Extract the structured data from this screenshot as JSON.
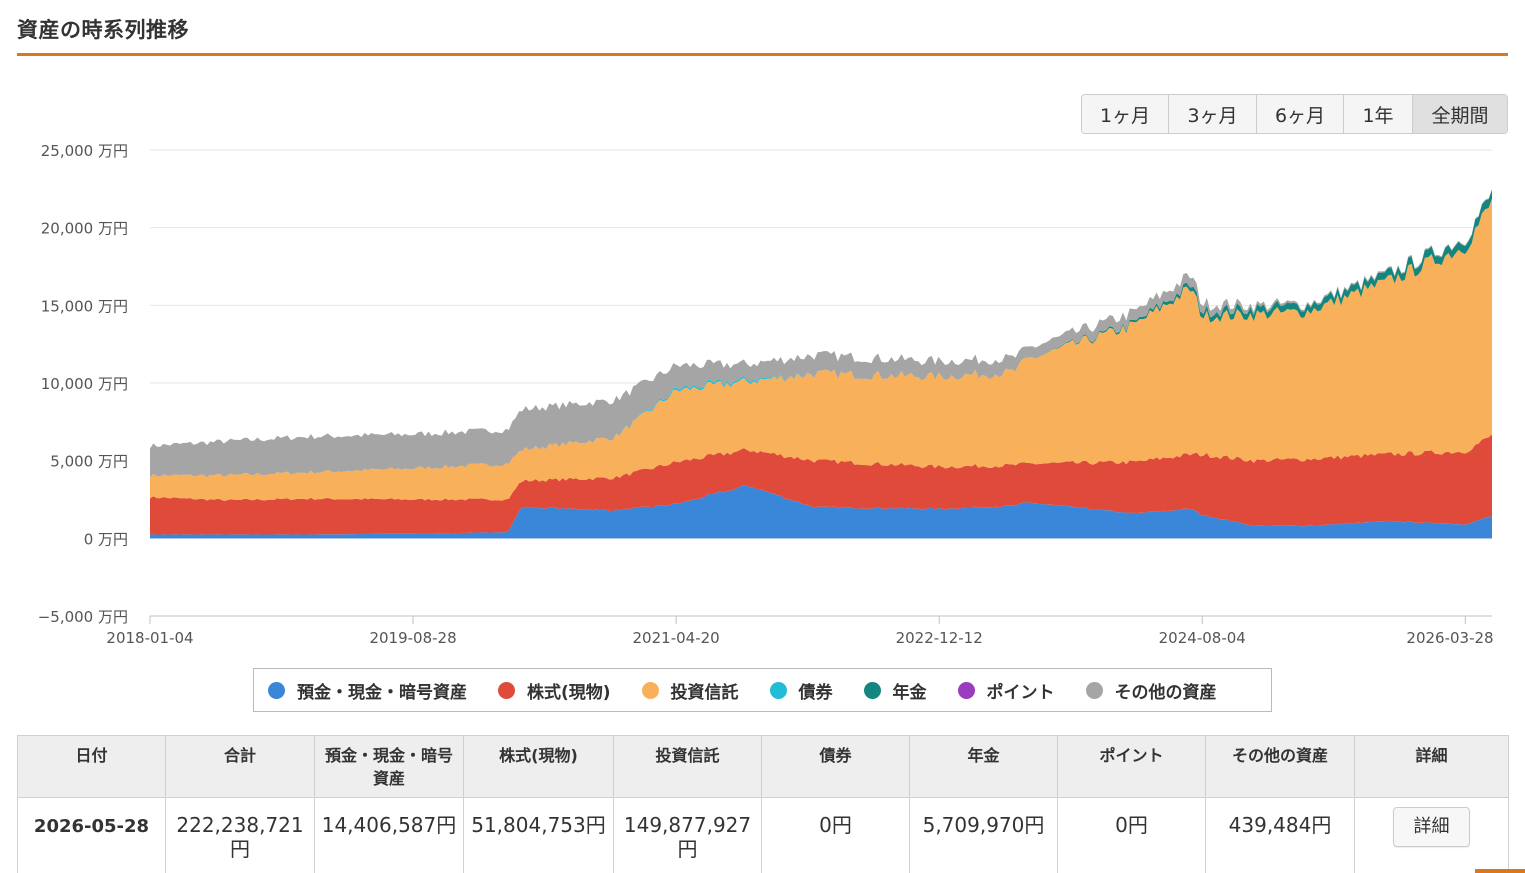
{
  "page": {
    "title": "資産の時系列推移"
  },
  "range_buttons": [
    {
      "label": "1ヶ月",
      "active": false
    },
    {
      "label": "3ヶ月",
      "active": false
    },
    {
      "label": "6ヶ月",
      "active": false
    },
    {
      "label": "1年",
      "active": false
    },
    {
      "label": "全期間",
      "active": true
    }
  ],
  "colors": {
    "accent": "#d9781d",
    "grid": "#e6e6e6",
    "axis": "#c0c0c0"
  },
  "chart_data": {
    "type": "area",
    "stacked": true,
    "y_unit": "万円",
    "ylim": [
      -5000,
      25000
    ],
    "y_ticks": [
      25000,
      20000,
      15000,
      10000,
      5000,
      0,
      -5000
    ],
    "y_tick_labels": [
      "25,000 万円",
      "20,000 万円",
      "15,000 万円",
      "10,000 万円",
      "5,000 万円",
      "0 万円",
      "−5,000 万円"
    ],
    "x_range": [
      "2018-01-04",
      "2026-05-28"
    ],
    "x_tick_labels": [
      "2018-01-04",
      "2019-08-28",
      "2021-04-20",
      "2022-12-12",
      "2024-08-04",
      "2026-03-28"
    ],
    "legend_position": "bottom",
    "grid": true,
    "x": [
      "2018-01-04",
      "2018-07-01",
      "2019-01-01",
      "2019-08-28",
      "2020-04-01",
      "2020-05-01",
      "2020-12-01",
      "2021-04-20",
      "2021-10-01",
      "2022-03-01",
      "2022-12-12",
      "2023-06-01",
      "2023-07-01",
      "2024-03-01",
      "2024-07-10",
      "2024-08-04",
      "2024-12-01",
      "2025-04-01",
      "2025-10-01",
      "2026-03-28",
      "2026-05-28"
    ],
    "series": [
      {
        "name": "預金・現金・暗号資産",
        "color": "#3a87d9",
        "values": [
          250,
          250,
          250,
          300,
          400,
          2000,
          1800,
          2200,
          3400,
          2000,
          1900,
          2100,
          2300,
          1600,
          1900,
          1500,
          800,
          800,
          1100,
          900,
          1441
        ]
      },
      {
        "name": "株式(現物)",
        "color": "#e04a3a",
        "values": [
          2400,
          2200,
          2300,
          2200,
          2100,
          1700,
          2100,
          2700,
          2300,
          3000,
          2700,
          2600,
          2500,
          3300,
          3500,
          3900,
          4200,
          4300,
          4300,
          4700,
          5180
        ]
      },
      {
        "name": "投資信託",
        "color": "#f8b15a",
        "values": [
          1400,
          1600,
          1700,
          2000,
          2300,
          2000,
          2600,
          4600,
          4400,
          5600,
          5800,
          6000,
          6700,
          8800,
          10700,
          8900,
          9400,
          9500,
          11100,
          13200,
          14988
        ]
      },
      {
        "name": "債券",
        "color": "#20bcd8",
        "values": [
          0,
          0,
          0,
          0,
          0,
          0,
          0,
          120,
          120,
          0,
          0,
          0,
          0,
          0,
          0,
          0,
          0,
          0,
          0,
          0,
          0
        ]
      },
      {
        "name": "年金",
        "color": "#13877f",
        "values": [
          0,
          0,
          0,
          0,
          0,
          0,
          0,
          0,
          0,
          0,
          0,
          0,
          0,
          130,
          250,
          320,
          400,
          420,
          460,
          530,
          571
        ]
      },
      {
        "name": "ポイント",
        "color": "#9b3bbd",
        "values": [
          0,
          0,
          0,
          0,
          0,
          0,
          0,
          0,
          0,
          0,
          0,
          0,
          0,
          0,
          0,
          0,
          0,
          0,
          0,
          0,
          0
        ]
      },
      {
        "name": "その他の資産",
        "color": "#a5a5a5",
        "values": [
          1900,
          2200,
          2300,
          2200,
          2200,
          2600,
          2400,
          1500,
          1000,
          1200,
          1000,
          900,
          700,
          700,
          600,
          500,
          200,
          100,
          80,
          60,
          44
        ]
      }
    ]
  },
  "table": {
    "headers": [
      "日付",
      "合計",
      "預金・現金・暗号資産",
      "株式(現物)",
      "投資信託",
      "債券",
      "年金",
      "ポイント",
      "その他の資産",
      "詳細"
    ],
    "row": {
      "date": "2026-05-28",
      "total": "222,238,721円",
      "deposits": "14,406,587円",
      "stocks": "51,804,753円",
      "funds": "149,877,927円",
      "bonds": "0円",
      "pension": "5,709,970円",
      "points": "0円",
      "other": "439,484円",
      "detail_label": "詳細"
    }
  }
}
